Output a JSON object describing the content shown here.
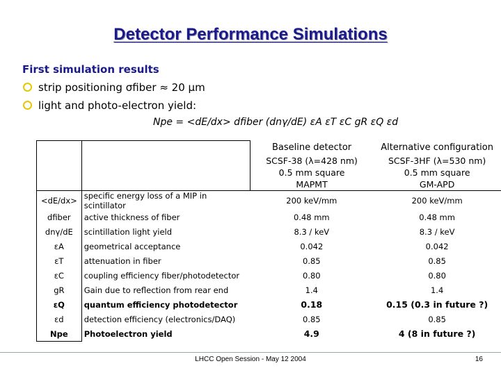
{
  "title": "Detector Performance Simulations",
  "heading": "First simulation results",
  "bullets": [
    "strip positioning σfiber ≈ 20 µm",
    "light and photo-electron yield:"
  ],
  "formula": "Npe = <dE/dx> dfiber (dnγ/dE) εA εT εC gR εQ εd",
  "table": {
    "columns": [
      {
        "title": "Baseline detector",
        "lines": [
          "SCSF-38 (λ=428 nm)",
          "0.5 mm square",
          "MAPMT"
        ]
      },
      {
        "title": "Alternative configuration",
        "lines": [
          "SCSF-3HF (λ=530 nm)",
          "0.5 mm square",
          "GM-APD"
        ]
      }
    ],
    "rows": [
      {
        "symbol": "<dE/dx>",
        "desc": "specific energy loss of a MIP in scintillator",
        "baseline": "200 keV/mm",
        "alternative": "200 keV/mm"
      },
      {
        "symbol": "dfiber",
        "desc": "active thickness of fiber",
        "baseline": "0.48 mm",
        "alternative": "0.48 mm"
      },
      {
        "symbol": "dnγ/dE",
        "desc": "scintillation light yield",
        "baseline": "8.3 / keV",
        "alternative": "8.3 / keV"
      },
      {
        "symbol": "εA",
        "desc": "geometrical acceptance",
        "baseline": "0.042",
        "alternative": "0.042"
      },
      {
        "symbol": "εT",
        "desc": "attenuation in fiber",
        "baseline": "0.85",
        "alternative": "0.85"
      },
      {
        "symbol": "εC",
        "desc": "coupling efficiency fiber/photodetector",
        "baseline": "0.80",
        "alternative": "0.80"
      },
      {
        "symbol": "gR",
        "desc": "Gain due to reflection from rear end",
        "baseline": "1.4",
        "alternative": "1.4"
      },
      {
        "symbol": "εQ",
        "desc": "quantum efficiency photodetector",
        "baseline": "0.18",
        "alternative": "0.15 (0.3 in future ?)"
      },
      {
        "symbol": "εd",
        "desc": "detection efficiency (electronics/DAQ)",
        "baseline": "0.85",
        "alternative": "0.85"
      },
      {
        "symbol": "Npe",
        "desc": "Photoelectron yield",
        "baseline": "4.9",
        "alternative": "4 (8 in future ?)"
      }
    ]
  },
  "footer": "LHCC Open Session - May 12 2004",
  "page_number": "16",
  "colors": {
    "title": "#1a1a8c",
    "bullet": "#e6c800"
  }
}
